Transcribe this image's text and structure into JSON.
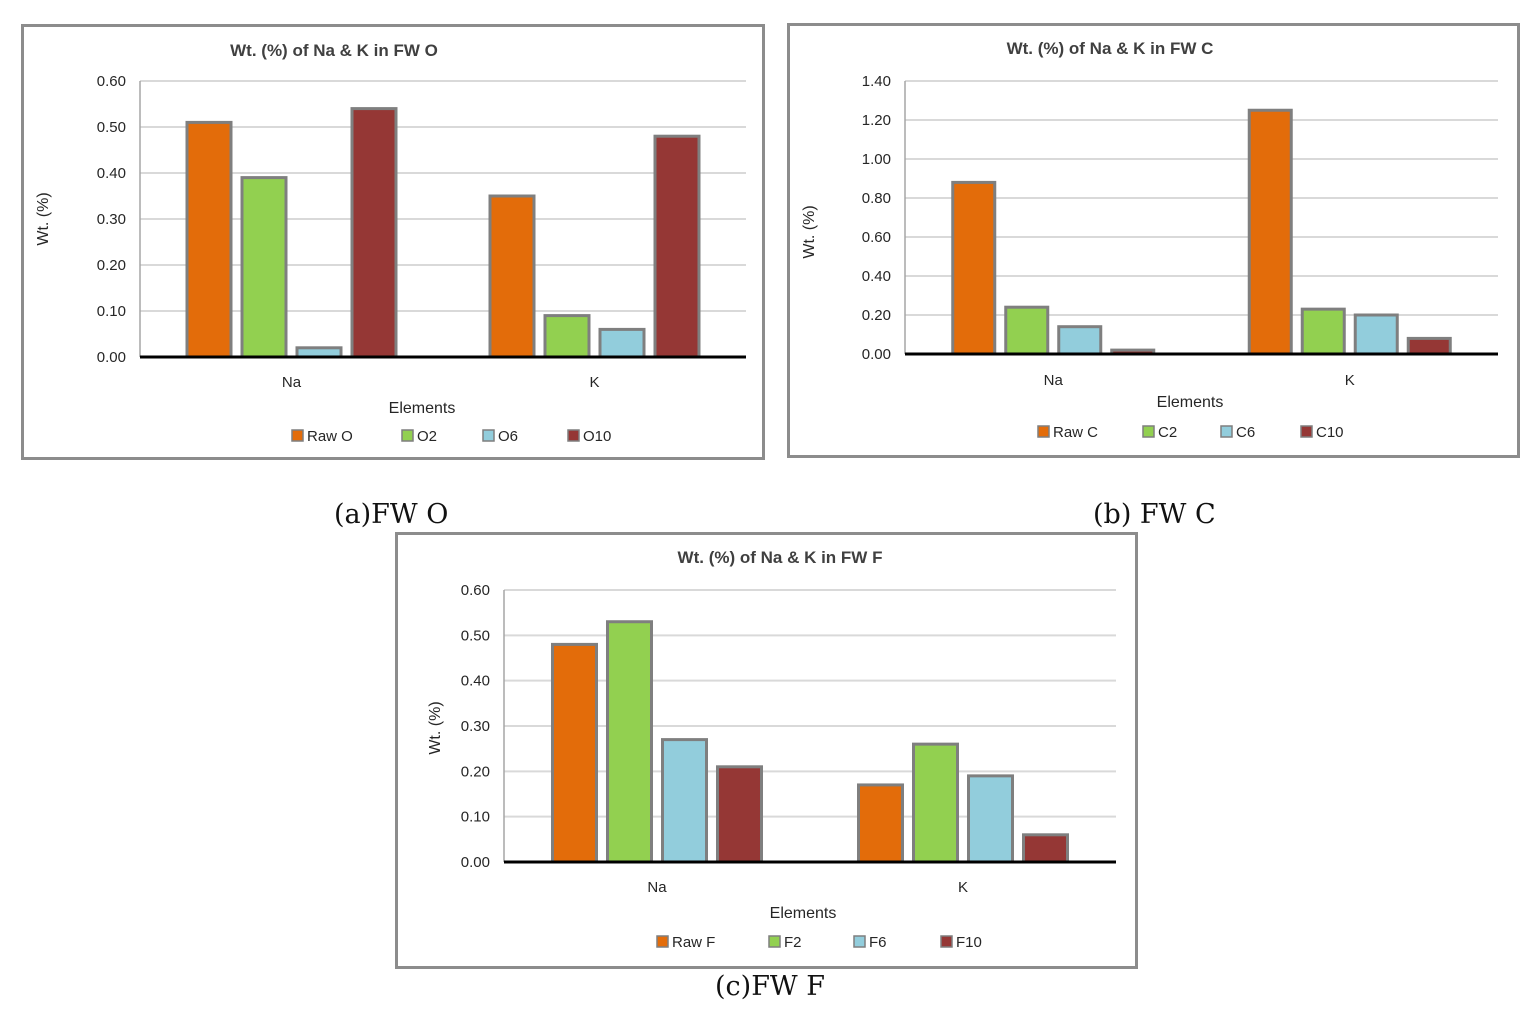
{
  "colors": {
    "raw": "#e36c0a",
    "s2": "#92d050",
    "s6": "#92cddc",
    "s10": "#953735",
    "bar_border": "#7f7f7f",
    "grid": "#d9d9d9",
    "axis": "#000000"
  },
  "chart_data": [
    {
      "type": "bar",
      "title": "Wt. (%) of Na & K in FW O",
      "xlabel": "Elements",
      "ylabel": "Wt. (%)",
      "categories": [
        "Na",
        "K"
      ],
      "yticks": [
        "0.00",
        "0.10",
        "0.20",
        "0.30",
        "0.40",
        "0.50",
        "0.60"
      ],
      "ylim": [
        0,
        0.6
      ],
      "grid": true,
      "legend": "bottom",
      "series": [
        {
          "name": "Raw O",
          "values": [
            0.51,
            0.35
          ]
        },
        {
          "name": "O2",
          "values": [
            0.39,
            0.09
          ]
        },
        {
          "name": "O6",
          "values": [
            0.02,
            0.06
          ]
        },
        {
          "name": "O10",
          "values": [
            0.54,
            0.48
          ]
        }
      ]
    },
    {
      "type": "bar",
      "title": "Wt. (%) of Na & K in FW C",
      "xlabel": "Elements",
      "ylabel": "Wt. (%)",
      "categories": [
        "Na",
        "K"
      ],
      "yticks": [
        "0.00",
        "0.20",
        "0.40",
        "0.60",
        "0.80",
        "1.00",
        "1.20",
        "1.40"
      ],
      "ylim": [
        0,
        1.4
      ],
      "grid": true,
      "legend": "bottom",
      "series": [
        {
          "name": "Raw C",
          "values": [
            0.88,
            1.25
          ]
        },
        {
          "name": "C2",
          "values": [
            0.24,
            0.23
          ]
        },
        {
          "name": "C6",
          "values": [
            0.14,
            0.2
          ]
        },
        {
          "name": "C10",
          "values": [
            0.02,
            0.08
          ]
        }
      ]
    },
    {
      "type": "bar",
      "title": "Wt. (%) of Na & K in FW F",
      "xlabel": "Elements",
      "ylabel": "Wt. (%)",
      "categories": [
        "Na",
        "K"
      ],
      "yticks": [
        "0.00",
        "0.10",
        "0.20",
        "0.30",
        "0.40",
        "0.50",
        "0.60"
      ],
      "ylim": [
        0,
        0.6
      ],
      "grid": true,
      "legend": "bottom",
      "series": [
        {
          "name": "Raw F",
          "values": [
            0.48,
            0.17
          ]
        },
        {
          "name": "F2",
          "values": [
            0.53,
            0.26
          ]
        },
        {
          "name": "F6",
          "values": [
            0.27,
            0.19
          ]
        },
        {
          "name": "F10",
          "values": [
            0.21,
            0.06
          ]
        }
      ]
    }
  ],
  "captions": [
    "(a)FW O",
    "(b) FW C",
    "(c)FW F"
  ]
}
